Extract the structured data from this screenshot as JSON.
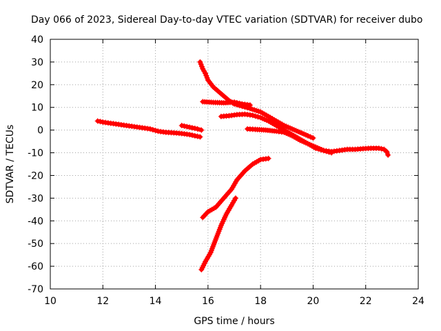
{
  "chart_data": {
    "type": "scatter",
    "title": "Day 066 of 2023, Sidereal Day-to-day VTEC variation (SDTVAR) for receiver dubo",
    "xlabel": "GPS time / hours",
    "ylabel": "SDTVAR / TECUs",
    "xlim": [
      10,
      24
    ],
    "ylim": [
      -70,
      40
    ],
    "x_ticks": [
      10,
      12,
      14,
      16,
      18,
      20,
      22,
      24
    ],
    "y_ticks": [
      40,
      30,
      20,
      10,
      0,
      -10,
      -20,
      -30,
      -40,
      -50,
      -60,
      -70
    ],
    "grid": true,
    "legend": "none",
    "marker": "plus",
    "color": "#ff0000",
    "series": [
      {
        "x": [
          11.8,
          12.0,
          12.3,
          12.6,
          12.9,
          13.2,
          13.5,
          13.8,
          14.1,
          14.4,
          14.7,
          15.0,
          15.3,
          15.5,
          15.7
        ],
        "y": [
          4,
          3.5,
          3,
          2.5,
          2,
          1.5,
          1,
          0.5,
          -0.5,
          -1,
          -1.2,
          -1.5,
          -2,
          -2.5,
          -3
        ]
      },
      {
        "x": [
          15.0,
          15.2,
          15.4,
          15.6,
          15.75
        ],
        "y": [
          2,
          1.5,
          1,
          0.5,
          0
        ]
      },
      {
        "x": [
          15.7,
          15.8,
          15.9,
          16.0,
          16.2,
          16.5,
          16.8,
          17.0,
          17.3,
          17.6,
          18.0,
          18.3,
          18.6,
          18.9,
          19.2,
          19.5,
          19.8,
          20.0
        ],
        "y": [
          30,
          27,
          25,
          22,
          19,
          16,
          13,
          11.5,
          10.5,
          9.5,
          8,
          6,
          4,
          2,
          0.5,
          -1,
          -2.5,
          -3.5
        ]
      },
      {
        "x": [
          15.8,
          16.2,
          16.6,
          17.0,
          17.3,
          17.6
        ],
        "y": [
          12.5,
          12.2,
          12,
          12.3,
          11.5,
          11
        ]
      },
      {
        "x": [
          16.5,
          16.8,
          17.1,
          17.4,
          17.7,
          18.0,
          18.3,
          18.6,
          18.9,
          19.2,
          19.5,
          19.8,
          20.1,
          20.4,
          20.7,
          21.0,
          21.3,
          21.6,
          21.9,
          22.2,
          22.5,
          22.7,
          22.8,
          22.85
        ],
        "y": [
          6,
          6.3,
          6.8,
          7,
          6.5,
          5.5,
          4,
          2,
          0,
          -2,
          -4,
          -6,
          -8,
          -9,
          -9.5,
          -9,
          -8.5,
          -8.5,
          -8.2,
          -8,
          -8,
          -8.5,
          -9.5,
          -11
        ]
      },
      {
        "x": [
          17.5,
          17.8,
          18.2,
          18.6,
          18.9,
          19.2,
          19.5,
          19.8,
          20.1,
          20.4,
          20.7
        ],
        "y": [
          0.5,
          0.3,
          0,
          -0.5,
          -1,
          -2.5,
          -4.5,
          -6,
          -7.5,
          -9,
          -10
        ]
      },
      {
        "x": [
          15.8,
          16.0,
          16.3,
          16.6,
          16.9,
          17.1,
          17.4,
          17.7,
          18.0,
          18.3
        ],
        "y": [
          -38.5,
          -36,
          -34,
          -30,
          -26,
          -22,
          -18,
          -15,
          -13,
          -12.5
        ]
      },
      {
        "x": [
          15.75,
          15.9,
          16.1,
          16.3,
          16.5,
          16.7,
          16.9,
          17.05
        ],
        "y": [
          -61.5,
          -58,
          -54,
          -48,
          -42,
          -37,
          -33,
          -30
        ]
      }
    ]
  }
}
